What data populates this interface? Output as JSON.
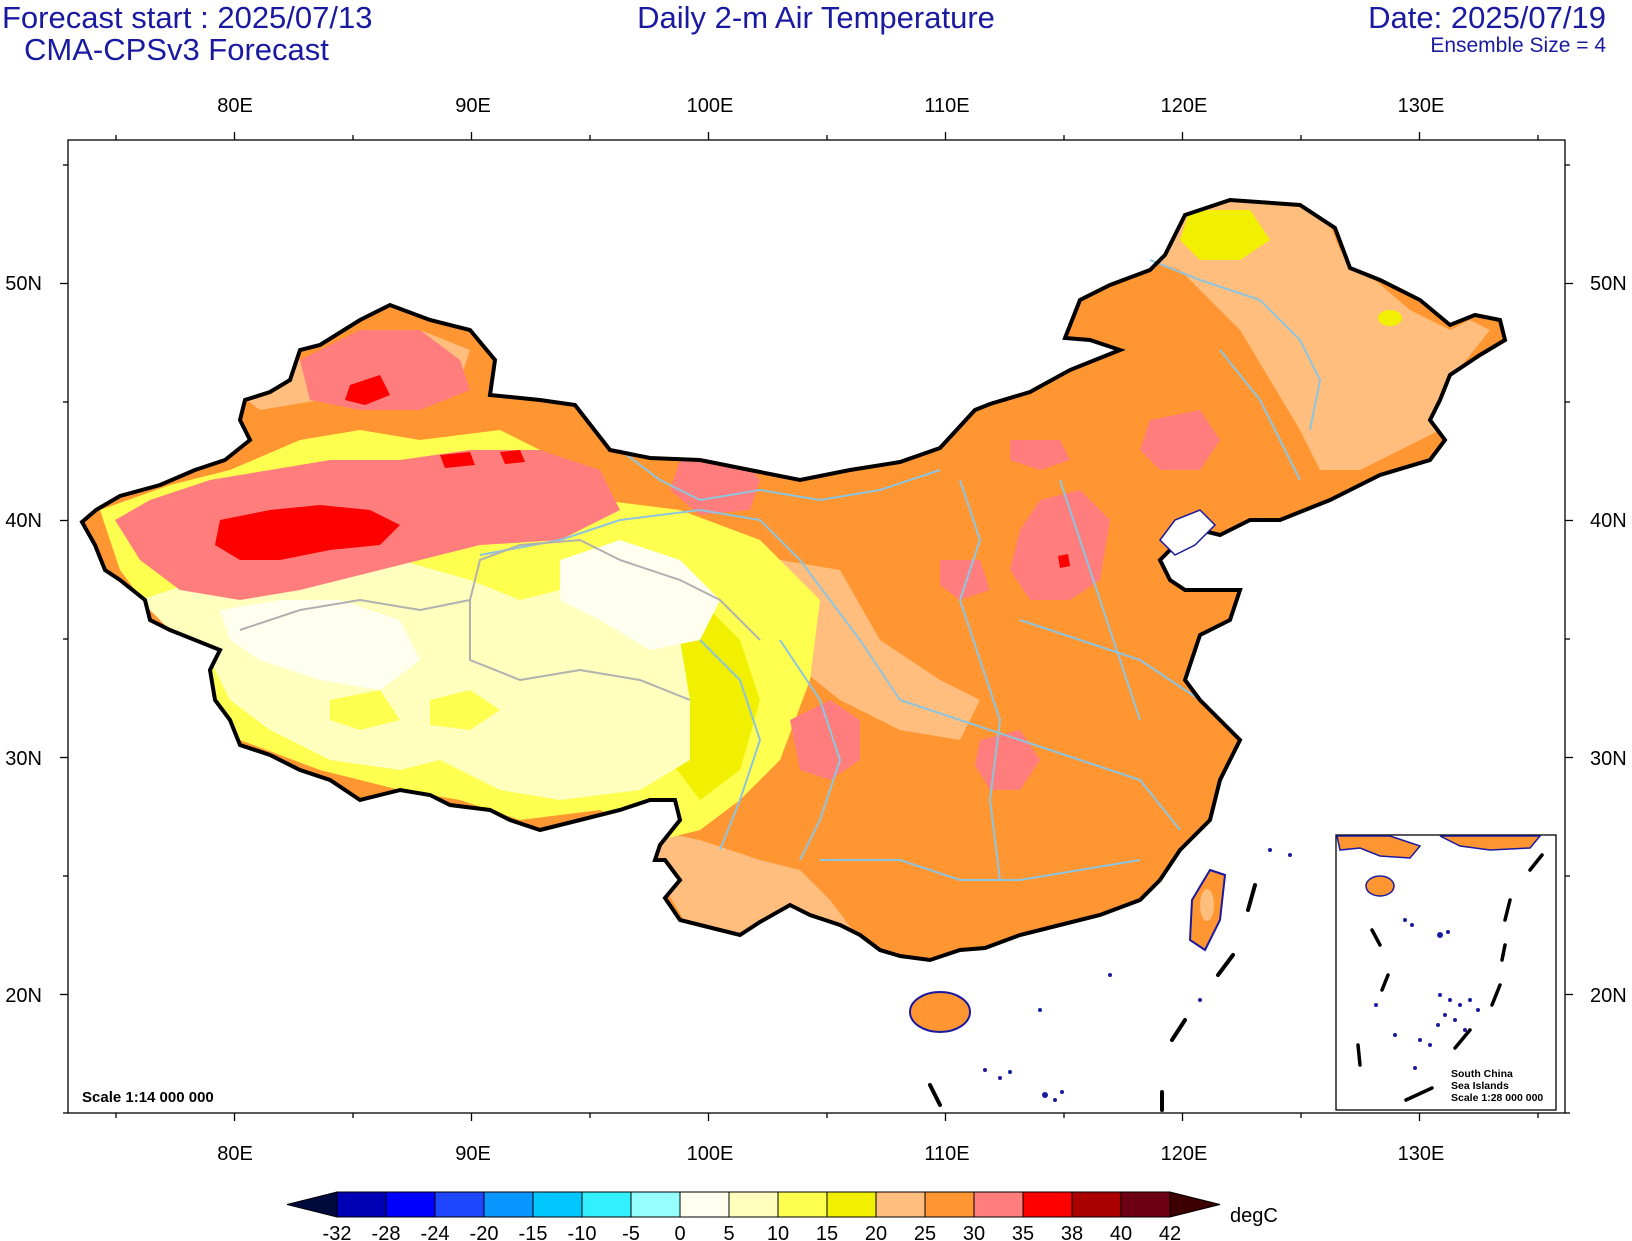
{
  "header": {
    "forecast_start": "Forecast start : 2025/07/13",
    "model": "CMA-CPSv3 Forecast",
    "title": "Daily 2-m Air Temperature",
    "date": "Date: 2025/07/19",
    "ensemble": "Ensemble Size = 4"
  },
  "map": {
    "lon_labels": [
      "80E",
      "90E",
      "100E",
      "110E",
      "120E",
      "130E"
    ],
    "lat_labels": [
      "50N",
      "40N",
      "30N",
      "20N"
    ],
    "scale_label": "Scale 1:14 000 000",
    "inset": {
      "line1": "South China",
      "line2": "Sea Islands",
      "line3": "Scale 1:28 000 000"
    },
    "boundary_color": "#000000",
    "province_color": "#8fc4de",
    "tibet_line_color": "#b0b0b0"
  },
  "colorbar": {
    "unit": "degC",
    "labels": [
      "-32",
      "-28",
      "-24",
      "-20",
      "-15",
      "-10",
      "-5",
      "0",
      "5",
      "10",
      "15",
      "20",
      "25",
      "30",
      "35",
      "38",
      "40",
      "42"
    ],
    "colors": [
      "#000a3c",
      "#0000b4",
      "#0000ff",
      "#1e46ff",
      "#0a96ff",
      "#00c8ff",
      "#32f0ff",
      "#96ffff",
      "#fffff0",
      "#ffffbe",
      "#ffff50",
      "#f0f000",
      "#ffbe7d",
      "#ff9632",
      "#ff7d7d",
      "#ff0000",
      "#aa0000",
      "#6e0014",
      "#3c0000"
    ]
  }
}
